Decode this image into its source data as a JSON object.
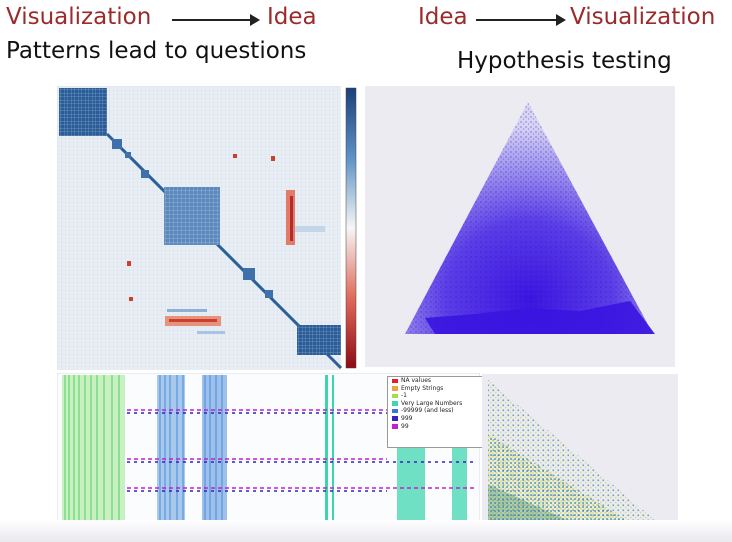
{
  "header": {
    "left": {
      "from": "Visualization",
      "to": "Idea",
      "subtitle": "Patterns lead to questions"
    },
    "right": {
      "from": "Idea",
      "to": "Visualization",
      "subtitle": "Hypothesis testing"
    }
  },
  "legend": {
    "items": [
      {
        "label": "NA values",
        "color": "#e0202a"
      },
      {
        "label": "Empty Strings",
        "color": "#f2a23a"
      },
      {
        "label": "-1",
        "color": "#9fe04a"
      },
      {
        "label": "Very Large Numbers",
        "color": "#3fd6b0"
      },
      {
        "label": "-99999 (and less)",
        "color": "#3f6fd8"
      },
      {
        "label": "999",
        "color": "#3a1fc0"
      },
      {
        "label": "99",
        "color": "#c022c8"
      }
    ]
  },
  "colors": {
    "title_red": "#9b2a2a",
    "heatmap_blue": "#1f4e8c",
    "heatmap_red": "#b01622",
    "ternary_blue": "#3b1fd8",
    "missing_green": "#32d66a",
    "missing_teal": "#3bc6d8"
  }
}
